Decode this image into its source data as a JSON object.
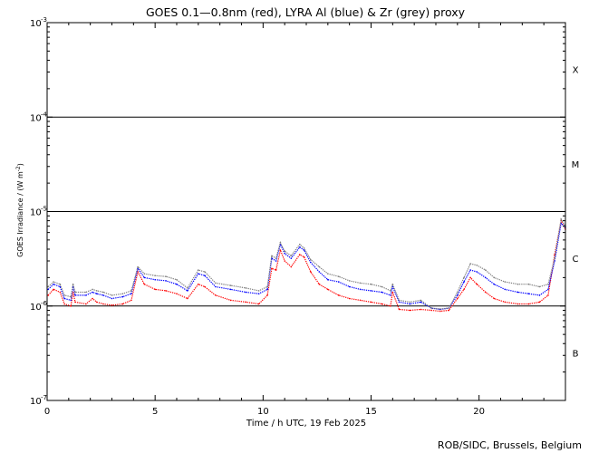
{
  "chart_data": {
    "type": "line",
    "title": "GOES 0.1—0.8nm (red), LYRA Al (blue) & Zr (grey) proxy",
    "xlabel": "Time / h UTC, 19 Feb 2025",
    "ylabel": "GOES Irradiance / (W m",
    "ylabel_sup": "-2",
    "ylabel_end": ")",
    "x_range": [
      0,
      24
    ],
    "x_ticks": [
      {
        "v": 0,
        "label": "0"
      },
      {
        "v": 5,
        "label": "5"
      },
      {
        "v": 10,
        "label": "10"
      },
      {
        "v": 15,
        "label": "15"
      },
      {
        "v": 20,
        "label": "20"
      }
    ],
    "y_scale": "log",
    "y_range": [
      1e-07,
      0.001
    ],
    "y_ticks": [
      {
        "v": 0.001,
        "base": "10",
        "exp": "-3"
      },
      {
        "v": 0.0001,
        "base": "10",
        "exp": "-4"
      },
      {
        "v": 1e-05,
        "base": "10",
        "exp": "-5"
      },
      {
        "v": 1e-06,
        "base": "10",
        "exp": "-6"
      },
      {
        "v": 1e-07,
        "base": "10",
        "exp": "-7"
      }
    ],
    "class_lines": [
      0.0001,
      1e-05,
      1e-06
    ],
    "flare_classes": [
      {
        "label": "X",
        "v": 0.00032
      },
      {
        "label": "M",
        "v": 3.2e-05
      },
      {
        "label": "C",
        "v": 3.2e-06
      },
      {
        "label": "B",
        "v": 3.2e-07
      }
    ],
    "series": [
      {
        "color": "#ff0000",
        "points": [
          [
            0.05,
            1.3e-06
          ],
          [
            0.3,
            1.5e-06
          ],
          [
            0.6,
            1.4e-06
          ],
          [
            0.8,
            1.05e-06
          ],
          [
            1.1,
            1e-06
          ],
          [
            1.2,
            1.4e-06
          ],
          [
            1.3,
            1.1e-06
          ],
          [
            1.8,
            1.05e-06
          ],
          [
            2.1,
            1.2e-06
          ],
          [
            2.3,
            1.1e-06
          ],
          [
            2.6,
            1.05e-06
          ],
          [
            3.0,
            1.02e-06
          ],
          [
            3.5,
            1.05e-06
          ],
          [
            3.9,
            1.15e-06
          ],
          [
            4.2,
            2.3e-06
          ],
          [
            4.5,
            1.7e-06
          ],
          [
            5.0,
            1.5e-06
          ],
          [
            5.5,
            1.45e-06
          ],
          [
            6.0,
            1.35e-06
          ],
          [
            6.5,
            1.2e-06
          ],
          [
            7.0,
            1.7e-06
          ],
          [
            7.3,
            1.6e-06
          ],
          [
            7.8,
            1.3e-06
          ],
          [
            8.5,
            1.15e-06
          ],
          [
            9.2,
            1.1e-06
          ],
          [
            9.8,
            1.05e-06
          ],
          [
            10.2,
            1.3e-06
          ],
          [
            10.4,
            2.5e-06
          ],
          [
            10.6,
            2.4e-06
          ],
          [
            10.8,
            3.9e-06
          ],
          [
            11.0,
            3e-06
          ],
          [
            11.3,
            2.6e-06
          ],
          [
            11.7,
            3.5e-06
          ],
          [
            11.9,
            3.3e-06
          ],
          [
            12.2,
            2.3e-06
          ],
          [
            12.6,
            1.7e-06
          ],
          [
            13.0,
            1.5e-06
          ],
          [
            13.5,
            1.3e-06
          ],
          [
            14.0,
            1.2e-06
          ],
          [
            14.5,
            1.15e-06
          ],
          [
            15.0,
            1.1e-06
          ],
          [
            15.5,
            1.05e-06
          ],
          [
            15.9,
            1e-06
          ],
          [
            16.0,
            1.4e-06
          ],
          [
            16.3,
            9.2e-07
          ],
          [
            16.8,
            9e-07
          ],
          [
            17.3,
            9.2e-07
          ],
          [
            17.8,
            9e-07
          ],
          [
            18.2,
            8.8e-07
          ],
          [
            18.6,
            9e-07
          ],
          [
            19.0,
            1.2e-06
          ],
          [
            19.3,
            1.5e-06
          ],
          [
            19.6,
            2e-06
          ],
          [
            19.9,
            1.7e-06
          ],
          [
            20.3,
            1.4e-06
          ],
          [
            20.7,
            1.2e-06
          ],
          [
            21.2,
            1.1e-06
          ],
          [
            21.8,
            1.05e-06
          ],
          [
            22.3,
            1.05e-06
          ],
          [
            22.8,
            1.1e-06
          ],
          [
            23.2,
            1.3e-06
          ],
          [
            23.5,
            3.5e-06
          ],
          [
            23.8,
            8e-06
          ],
          [
            24.0,
            6.5e-06
          ]
        ]
      },
      {
        "color": "#0000ff",
        "points": [
          [
            0.05,
            1.5e-06
          ],
          [
            0.3,
            1.7e-06
          ],
          [
            0.6,
            1.6e-06
          ],
          [
            0.8,
            1.2e-06
          ],
          [
            1.1,
            1.15e-06
          ],
          [
            1.2,
            1.6e-06
          ],
          [
            1.3,
            1.3e-06
          ],
          [
            1.8,
            1.3e-06
          ],
          [
            2.1,
            1.4e-06
          ],
          [
            2.3,
            1.35e-06
          ],
          [
            2.6,
            1.3e-06
          ],
          [
            3.0,
            1.2e-06
          ],
          [
            3.5,
            1.25e-06
          ],
          [
            3.9,
            1.35e-06
          ],
          [
            4.2,
            2.5e-06
          ],
          [
            4.5,
            2e-06
          ],
          [
            5.0,
            1.9e-06
          ],
          [
            5.5,
            1.85e-06
          ],
          [
            6.0,
            1.7e-06
          ],
          [
            6.5,
            1.45e-06
          ],
          [
            7.0,
            2.2e-06
          ],
          [
            7.3,
            2.1e-06
          ],
          [
            7.8,
            1.6e-06
          ],
          [
            8.5,
            1.5e-06
          ],
          [
            9.2,
            1.4e-06
          ],
          [
            9.8,
            1.35e-06
          ],
          [
            10.2,
            1.5e-06
          ],
          [
            10.4,
            3.2e-06
          ],
          [
            10.6,
            3e-06
          ],
          [
            10.8,
            4.5e-06
          ],
          [
            11.0,
            3.6e-06
          ],
          [
            11.3,
            3.2e-06
          ],
          [
            11.7,
            4.2e-06
          ],
          [
            11.9,
            3.9e-06
          ],
          [
            12.2,
            2.9e-06
          ],
          [
            12.6,
            2.3e-06
          ],
          [
            13.0,
            1.9e-06
          ],
          [
            13.5,
            1.8e-06
          ],
          [
            14.0,
            1.6e-06
          ],
          [
            14.5,
            1.5e-06
          ],
          [
            15.0,
            1.45e-06
          ],
          [
            15.5,
            1.4e-06
          ],
          [
            15.9,
            1.3e-06
          ],
          [
            16.0,
            1.6e-06
          ],
          [
            16.3,
            1.1e-06
          ],
          [
            16.8,
            1.05e-06
          ],
          [
            17.3,
            1.1e-06
          ],
          [
            17.8,
            9.5e-07
          ],
          [
            18.2,
            9.2e-07
          ],
          [
            18.6,
            9.5e-07
          ],
          [
            19.0,
            1.3e-06
          ],
          [
            19.3,
            1.8e-06
          ],
          [
            19.6,
            2.4e-06
          ],
          [
            19.9,
            2.3e-06
          ],
          [
            20.3,
            2e-06
          ],
          [
            20.7,
            1.7e-06
          ],
          [
            21.2,
            1.5e-06
          ],
          [
            21.8,
            1.4e-06
          ],
          [
            22.3,
            1.35e-06
          ],
          [
            22.8,
            1.3e-06
          ],
          [
            23.2,
            1.5e-06
          ],
          [
            23.5,
            3e-06
          ],
          [
            23.8,
            7.5e-06
          ],
          [
            24.0,
            6.8e-06
          ]
        ]
      },
      {
        "color": "#808080",
        "points": [
          [
            0.05,
            1.6e-06
          ],
          [
            0.3,
            1.8e-06
          ],
          [
            0.6,
            1.7e-06
          ],
          [
            0.8,
            1.3e-06
          ],
          [
            1.1,
            1.25e-06
          ],
          [
            1.2,
            1.7e-06
          ],
          [
            1.3,
            1.4e-06
          ],
          [
            1.8,
            1.4e-06
          ],
          [
            2.1,
            1.5e-06
          ],
          [
            2.3,
            1.45e-06
          ],
          [
            2.6,
            1.4e-06
          ],
          [
            3.0,
            1.3e-06
          ],
          [
            3.5,
            1.35e-06
          ],
          [
            3.9,
            1.45e-06
          ],
          [
            4.2,
            2.6e-06
          ],
          [
            4.5,
            2.2e-06
          ],
          [
            5.0,
            2.1e-06
          ],
          [
            5.5,
            2.05e-06
          ],
          [
            6.0,
            1.9e-06
          ],
          [
            6.5,
            1.55e-06
          ],
          [
            7.0,
            2.4e-06
          ],
          [
            7.3,
            2.3e-06
          ],
          [
            7.8,
            1.75e-06
          ],
          [
            8.5,
            1.65e-06
          ],
          [
            9.2,
            1.55e-06
          ],
          [
            9.8,
            1.45e-06
          ],
          [
            10.2,
            1.6e-06
          ],
          [
            10.4,
            3.4e-06
          ],
          [
            10.6,
            3.2e-06
          ],
          [
            10.8,
            4.7e-06
          ],
          [
            11.0,
            3.8e-06
          ],
          [
            11.3,
            3.4e-06
          ],
          [
            11.7,
            4.5e-06
          ],
          [
            11.9,
            4.1e-06
          ],
          [
            12.2,
            3.1e-06
          ],
          [
            12.6,
            2.6e-06
          ],
          [
            13.0,
            2.2e-06
          ],
          [
            13.5,
            2.05e-06
          ],
          [
            14.0,
            1.85e-06
          ],
          [
            14.5,
            1.75e-06
          ],
          [
            15.0,
            1.7e-06
          ],
          [
            15.5,
            1.6e-06
          ],
          [
            15.9,
            1.45e-06
          ],
          [
            16.0,
            1.7e-06
          ],
          [
            16.3,
            1.15e-06
          ],
          [
            16.8,
            1.1e-06
          ],
          [
            17.3,
            1.15e-06
          ],
          [
            17.8,
            9.5e-07
          ],
          [
            18.2,
            9.3e-07
          ],
          [
            18.6,
            9.5e-07
          ],
          [
            19.0,
            1.4e-06
          ],
          [
            19.3,
            2e-06
          ],
          [
            19.6,
            2.8e-06
          ],
          [
            19.9,
            2.7e-06
          ],
          [
            20.3,
            2.4e-06
          ],
          [
            20.7,
            2e-06
          ],
          [
            21.2,
            1.8e-06
          ],
          [
            21.8,
            1.7e-06
          ],
          [
            22.3,
            1.7e-06
          ],
          [
            22.8,
            1.6e-06
          ],
          [
            23.2,
            1.7e-06
          ],
          [
            23.5,
            3.2e-06
          ],
          [
            23.8,
            8.3e-06
          ],
          [
            24.0,
            7e-06
          ]
        ]
      }
    ]
  },
  "credit": "ROB/SIDC, Brussels, Belgium"
}
